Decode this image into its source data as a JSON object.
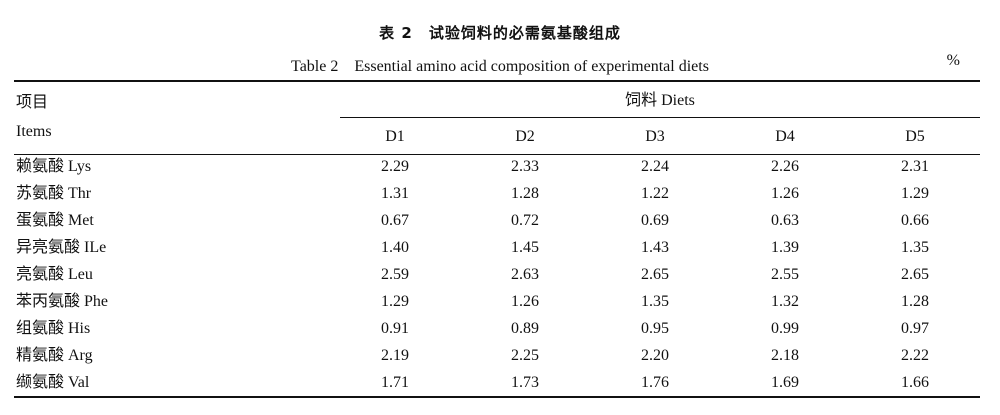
{
  "table": {
    "title_cn": "表 2　试验饲料的必需氨基酸组成",
    "title_en": "Table 2　Essential amino acid composition of experimental diets",
    "unit": "%",
    "header": {
      "items_cn": "项目",
      "items_en": "Items",
      "group": "饲料 Diets",
      "columns": [
        "D1",
        "D2",
        "D3",
        "D4",
        "D5"
      ]
    },
    "rows": [
      {
        "label": "赖氨酸 Lys",
        "values": [
          "2.29",
          "2.33",
          "2.24",
          "2.26",
          "2.31"
        ]
      },
      {
        "label": "苏氨酸 Thr",
        "values": [
          "1.31",
          "1.28",
          "1.22",
          "1.26",
          "1.29"
        ]
      },
      {
        "label": "蛋氨酸 Met",
        "values": [
          "0.67",
          "0.72",
          "0.69",
          "0.63",
          "0.66"
        ]
      },
      {
        "label": "异亮氨酸 ILe",
        "values": [
          "1.40",
          "1.45",
          "1.43",
          "1.39",
          "1.35"
        ]
      },
      {
        "label": "亮氨酸 Leu",
        "values": [
          "2.59",
          "2.63",
          "2.65",
          "2.55",
          "2.65"
        ]
      },
      {
        "label": "苯丙氨酸 Phe",
        "values": [
          "1.29",
          "1.26",
          "1.35",
          "1.32",
          "1.28"
        ]
      },
      {
        "label": "组氨酸 His",
        "values": [
          "0.91",
          "0.89",
          "0.95",
          "0.99",
          "0.97"
        ]
      },
      {
        "label": "精氨酸 Arg",
        "values": [
          "2.19",
          "2.25",
          "2.20",
          "2.18",
          "2.22"
        ]
      },
      {
        "label": "缬氨酸 Val",
        "values": [
          "1.71",
          "1.73",
          "1.76",
          "1.69",
          "1.66"
        ]
      }
    ]
  }
}
